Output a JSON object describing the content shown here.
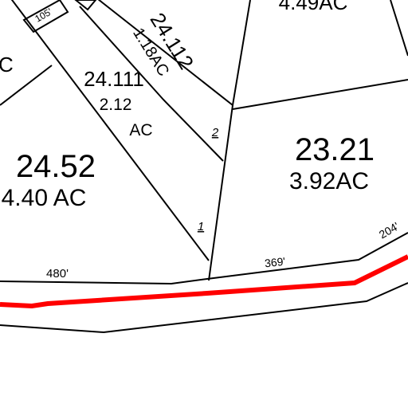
{
  "map": {
    "labels": {
      "dim_105": "105'",
      "lot_c_tail": "C",
      "lot_top_acres": "4.49AC",
      "lot_24_112": "24.112",
      "lot_24_112_acres": "1.18AC",
      "lot_24_111": "24.111",
      "lot_24_111_acres": "2.12",
      "lot_24_111_unit": "AC",
      "marker_2": "2",
      "lot_24_52": "24.52",
      "lot_24_52_acres": "4.40 AC",
      "lot_23_21": "23.21",
      "lot_23_21_acres": "3.92AC",
      "marker_1": "1",
      "dim_480": "480'",
      "dim_369": "369'",
      "dim_204": "204'"
    }
  }
}
